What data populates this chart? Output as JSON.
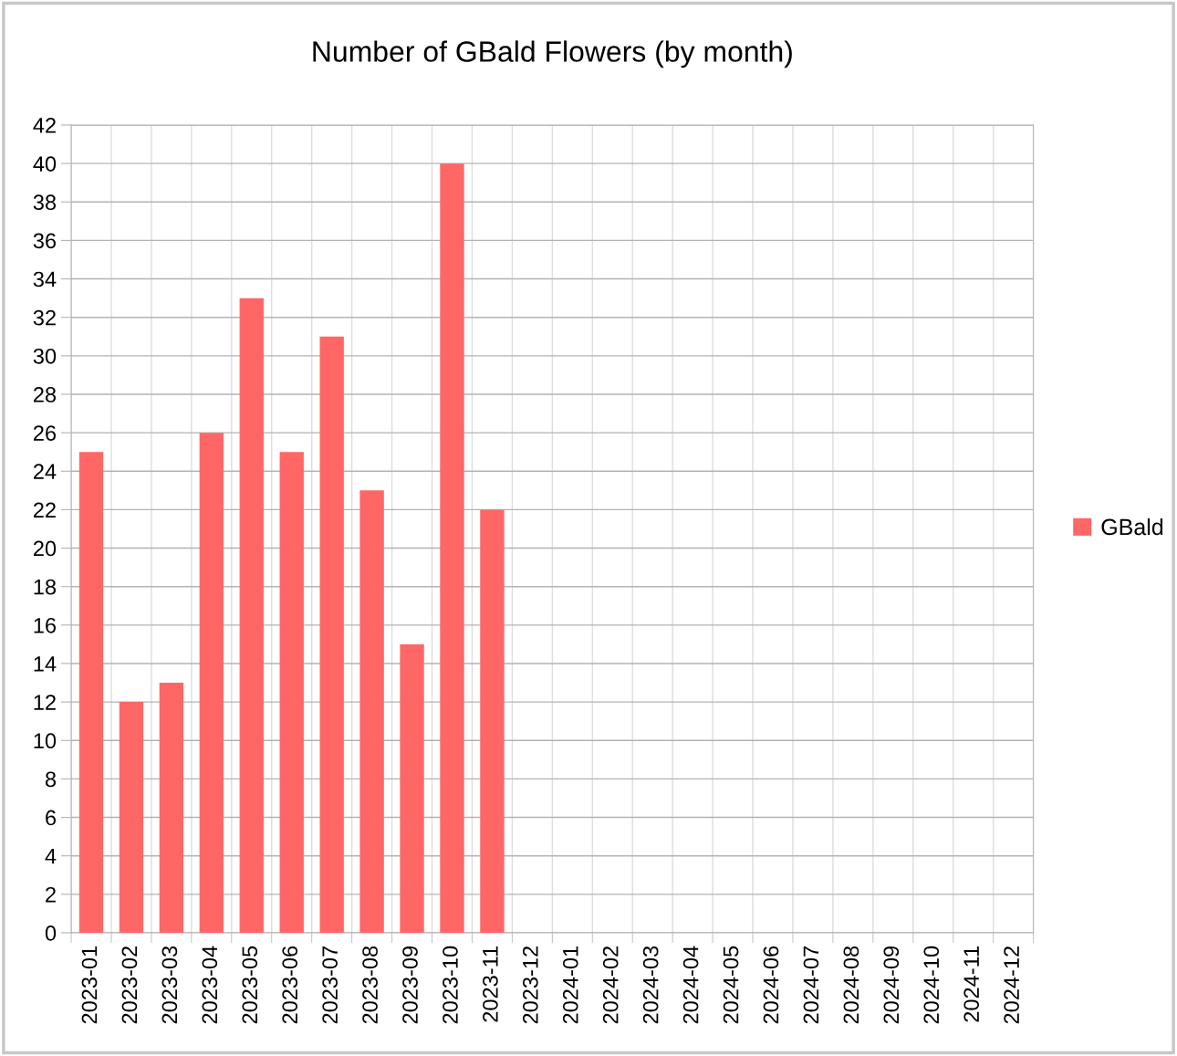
{
  "chart_data": {
    "type": "bar",
    "title": "Number of GBald Flowers (by month)",
    "categories": [
      "2023-01",
      "2023-02",
      "2023-03",
      "2023-04",
      "2023-05",
      "2023-06",
      "2023-07",
      "2023-08",
      "2023-09",
      "2023-10",
      "2023-11",
      "2023-12",
      "2024-01",
      "2024-02",
      "2024-03",
      "2024-04",
      "2024-05",
      "2024-06",
      "2024-07",
      "2024-08",
      "2024-09",
      "2024-10",
      "2024-11",
      "2024-12"
    ],
    "series": [
      {
        "name": "GBald",
        "color": "#ff6666",
        "values": [
          25,
          12,
          13,
          26,
          33,
          25,
          31,
          23,
          15,
          40,
          22,
          0,
          0,
          0,
          0,
          0,
          0,
          0,
          0,
          0,
          0,
          0,
          0,
          0
        ]
      }
    ],
    "ylim": [
      0,
      42
    ],
    "yticks": [
      0,
      2,
      4,
      6,
      8,
      10,
      12,
      14,
      16,
      18,
      20,
      22,
      24,
      26,
      28,
      30,
      32,
      34,
      36,
      38,
      40,
      42
    ],
    "grid": true,
    "legend": "right"
  }
}
